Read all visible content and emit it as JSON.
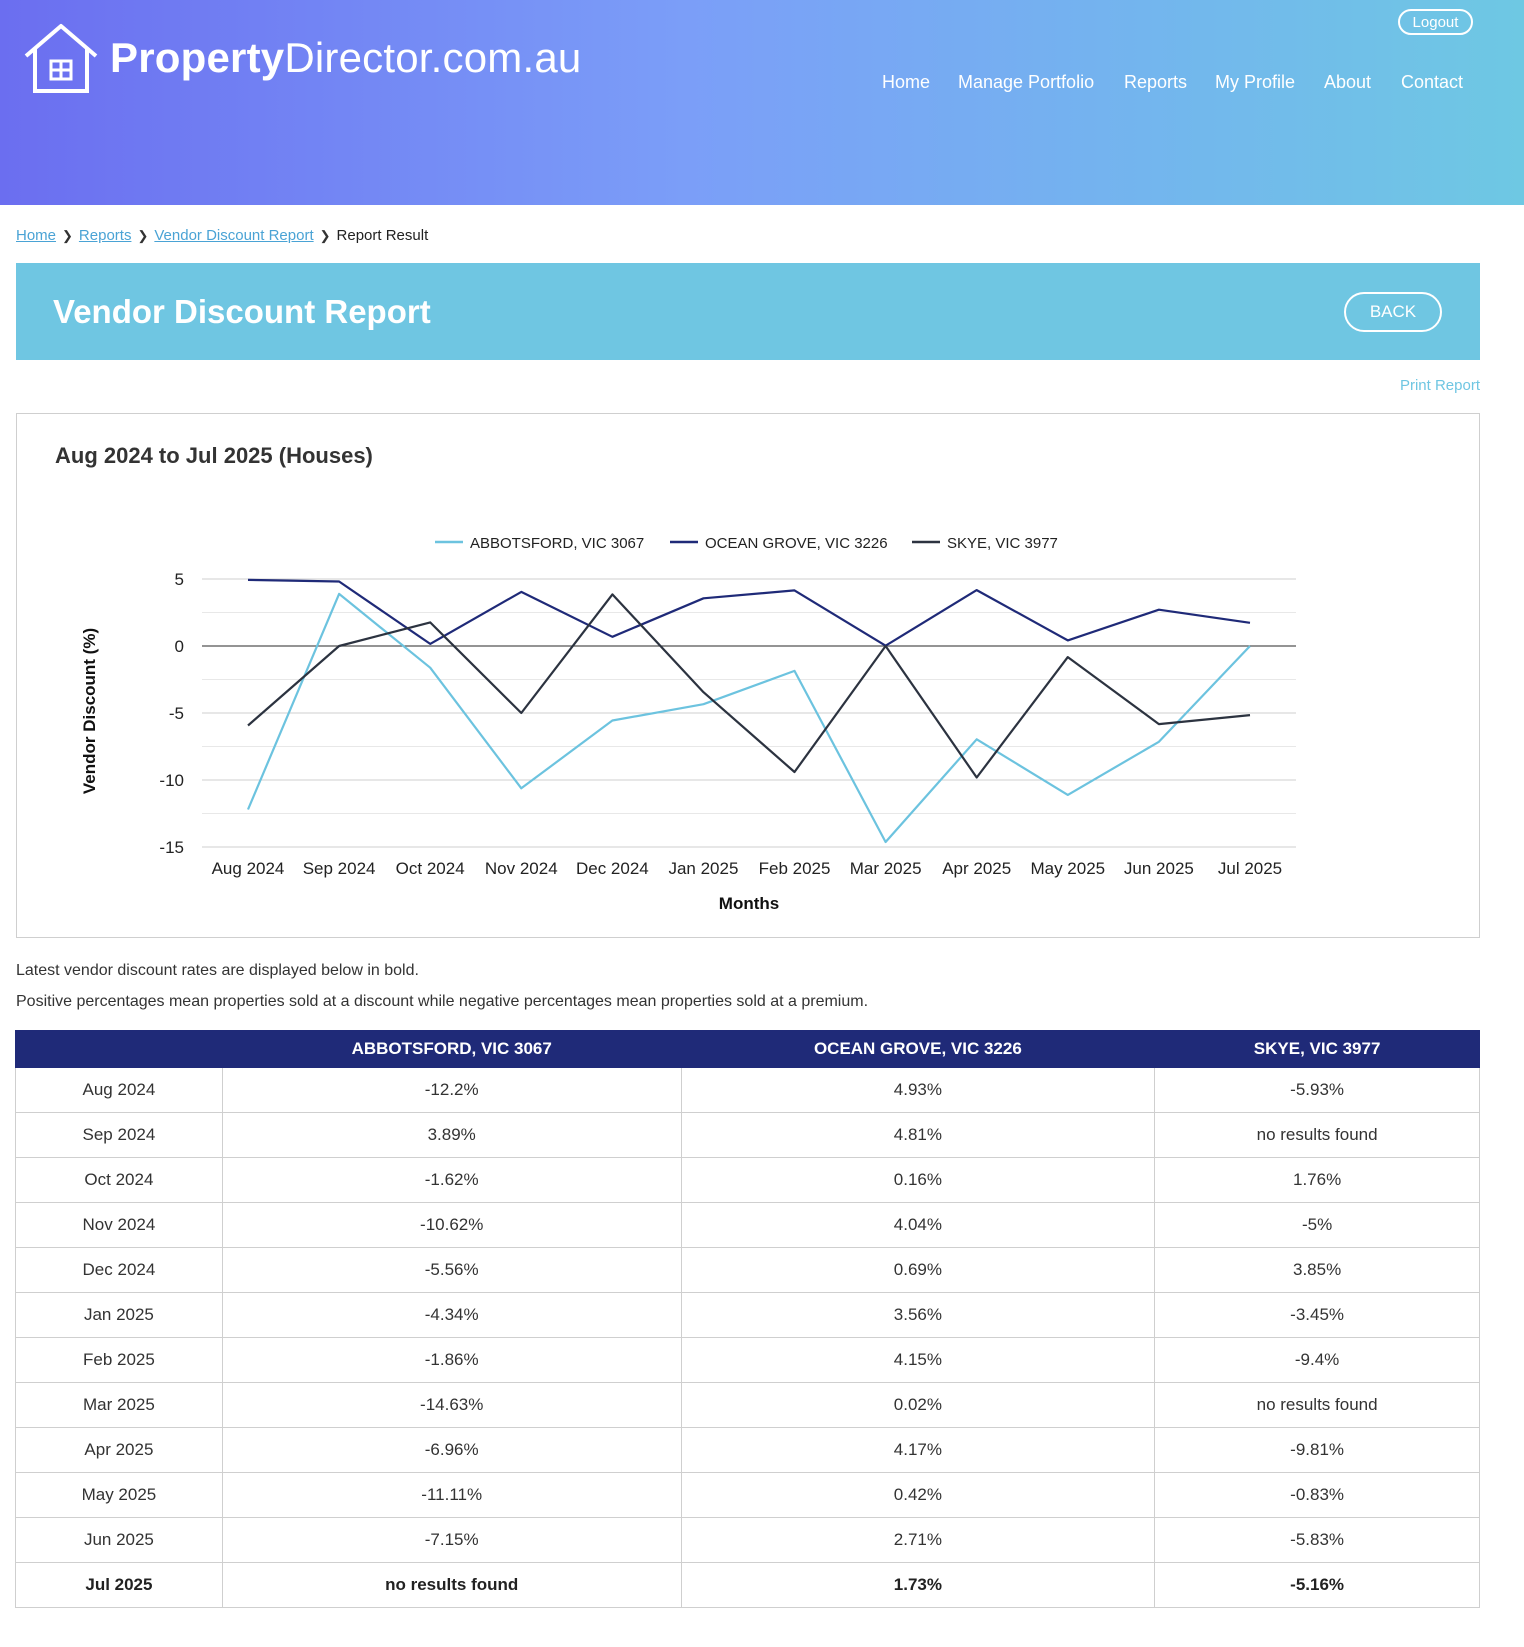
{
  "header": {
    "brand_bold": "Property",
    "brand_rest": "Director.com.au",
    "logout_label": "Logout",
    "nav": [
      "Home",
      "Manage Portfolio",
      "Reports",
      "My Profile",
      "About",
      "Contact"
    ]
  },
  "breadcrumb": {
    "items": [
      "Home",
      "Reports",
      "Vendor Discount Report"
    ],
    "current": "Report Result"
  },
  "page": {
    "title": "Vendor Discount Report",
    "back_label": "BACK",
    "print_label": "Print Report"
  },
  "chart_data": {
    "type": "line",
    "title": "Aug 2024 to Jul 2025 (Houses)",
    "xlabel": "Months",
    "ylabel": "Vendor Discount (%)",
    "ylim": [
      -15,
      5
    ],
    "yticks": [
      5,
      0,
      -5,
      -10,
      -15
    ],
    "grid": true,
    "legend_position": "top-center",
    "categories": [
      "Aug 2024",
      "Sep 2024",
      "Oct 2024",
      "Nov 2024",
      "Dec 2024",
      "Jan 2025",
      "Feb 2025",
      "Mar 2025",
      "Apr 2025",
      "May 2025",
      "Jun 2025",
      "Jul 2025"
    ],
    "series": [
      {
        "name": "ABBOTSFORD, VIC 3067",
        "color": "#6cc3df",
        "values": [
          -12.2,
          3.89,
          -1.62,
          -10.62,
          -5.56,
          -4.34,
          -1.86,
          -14.63,
          -6.96,
          -11.11,
          -7.15,
          0
        ]
      },
      {
        "name": "OCEAN GROVE, VIC 3226",
        "color": "#1f2a78",
        "values": [
          4.93,
          4.81,
          0.16,
          4.04,
          0.69,
          3.56,
          4.15,
          0.02,
          4.17,
          0.42,
          2.71,
          1.73
        ]
      },
      {
        "name": "SKYE, VIC 3977",
        "color": "#2c3340",
        "values": [
          -5.93,
          0,
          1.76,
          -5,
          3.85,
          -3.45,
          -9.4,
          0,
          -9.81,
          -0.83,
          -5.83,
          -5.16
        ]
      }
    ]
  },
  "notes": {
    "line1": "Latest vendor discount rates are displayed below in bold.",
    "line2": "Positive percentages mean properties sold at a discount while negative percentages mean properties sold at a premium."
  },
  "table": {
    "headers": [
      "",
      "ABBOTSFORD, VIC 3067",
      "OCEAN GROVE, VIC 3226",
      "SKYE, VIC 3977"
    ],
    "rows": [
      [
        "Aug 2024",
        "-12.2%",
        "4.93%",
        "-5.93%"
      ],
      [
        "Sep 2024",
        "3.89%",
        "4.81%",
        "no results found"
      ],
      [
        "Oct 2024",
        "-1.62%",
        "0.16%",
        "1.76%"
      ],
      [
        "Nov 2024",
        "-10.62%",
        "4.04%",
        "-5%"
      ],
      [
        "Dec 2024",
        "-5.56%",
        "0.69%",
        "3.85%"
      ],
      [
        "Jan 2025",
        "-4.34%",
        "3.56%",
        "-3.45%"
      ],
      [
        "Feb 2025",
        "-1.86%",
        "4.15%",
        "-9.4%"
      ],
      [
        "Mar 2025",
        "-14.63%",
        "0.02%",
        "no results found"
      ],
      [
        "Apr 2025",
        "-6.96%",
        "4.17%",
        "-9.81%"
      ],
      [
        "May 2025",
        "-11.11%",
        "0.42%",
        "-0.83%"
      ],
      [
        "Jun 2025",
        "-7.15%",
        "2.71%",
        "-5.83%"
      ],
      [
        "Jul 2025",
        "no results found",
        "1.73%",
        "-5.16%"
      ]
    ]
  }
}
